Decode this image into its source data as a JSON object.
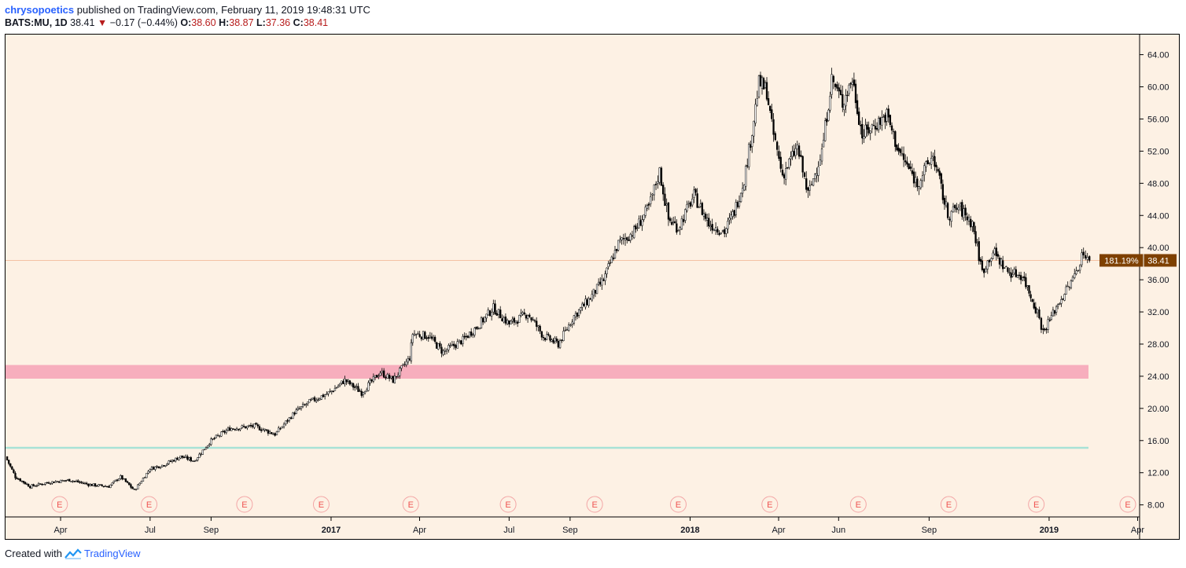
{
  "header": {
    "author": "chrysopoetics",
    "published_text": " published on TradingView.com, February 11, 2019 19:48:31 UTC",
    "symbol": "BATS:MU, 1D",
    "last": "38.41",
    "change_arrow": "▼",
    "change": "−0.17 (−0.44%)",
    "open_label": "O:",
    "open": "38.60",
    "high_label": "H:",
    "high": "38.87",
    "low_label": "L:",
    "low": "37.36",
    "close_label": "C:",
    "close": "38.41"
  },
  "footer": {
    "created_with": "Created with",
    "brand": "TradingView"
  },
  "chart_data": {
    "type": "line",
    "title": "",
    "symbol": "MU",
    "exchange": "BATS",
    "interval": "1D",
    "style": "candlestick",
    "ylim": [
      6.5,
      66.5
    ],
    "y_ticks": [
      "8.00",
      "12.00",
      "16.00",
      "20.00",
      "24.00",
      "28.00",
      "32.00",
      "36.00",
      "40.00",
      "44.00",
      "48.00",
      "52.00",
      "56.00",
      "60.00",
      "64.00"
    ],
    "x_ticks": [
      {
        "label": "Apr",
        "date": "2016-04-01",
        "bold": false
      },
      {
        "label": "Jul",
        "date": "2016-07-01",
        "bold": false
      },
      {
        "label": "Sep",
        "date": "2016-09-01",
        "bold": false
      },
      {
        "label": "2017",
        "date": "2017-01-01",
        "bold": true
      },
      {
        "label": "Apr",
        "date": "2017-04-01",
        "bold": false
      },
      {
        "label": "Jul",
        "date": "2017-07-01",
        "bold": false
      },
      {
        "label": "Sep",
        "date": "2017-09-01",
        "bold": false
      },
      {
        "label": "2018",
        "date": "2018-01-01",
        "bold": true
      },
      {
        "label": "Apr",
        "date": "2018-04-01",
        "bold": false
      },
      {
        "label": "Jun",
        "date": "2018-06-01",
        "bold": false
      },
      {
        "label": "Sep",
        "date": "2018-09-01",
        "bold": false
      },
      {
        "label": "2019",
        "date": "2019-01-01",
        "bold": true
      },
      {
        "label": "Apr",
        "date": "2019-04-01",
        "bold": false
      }
    ],
    "x_range": [
      "2016-02-05",
      "2019-04-03"
    ],
    "series": [
      {
        "values": [
          {
            "date": "2016-02-05",
            "close": 14.0
          },
          {
            "date": "2016-02-15",
            "close": 11.5
          },
          {
            "date": "2016-03-01",
            "close": 10.3
          },
          {
            "date": "2016-03-20",
            "close": 10.8
          },
          {
            "date": "2016-04-10",
            "close": 11.1
          },
          {
            "date": "2016-05-01",
            "close": 10.5
          },
          {
            "date": "2016-05-20",
            "close": 10.3
          },
          {
            "date": "2016-06-01",
            "close": 11.5
          },
          {
            "date": "2016-06-15",
            "close": 9.8
          },
          {
            "date": "2016-07-01",
            "close": 12.5
          },
          {
            "date": "2016-07-15",
            "close": 13.0
          },
          {
            "date": "2016-08-01",
            "close": 14.0
          },
          {
            "date": "2016-08-15",
            "close": 13.5
          },
          {
            "date": "2016-09-01",
            "close": 16.0
          },
          {
            "date": "2016-09-20",
            "close": 17.5
          },
          {
            "date": "2016-10-15",
            "close": 17.8
          },
          {
            "date": "2016-11-05",
            "close": 16.8
          },
          {
            "date": "2016-11-25",
            "close": 19.5
          },
          {
            "date": "2016-12-10",
            "close": 20.8
          },
          {
            "date": "2016-12-31",
            "close": 22.0
          },
          {
            "date": "2017-01-15",
            "close": 23.5
          },
          {
            "date": "2017-02-01",
            "close": 22.0
          },
          {
            "date": "2017-02-20",
            "close": 24.5
          },
          {
            "date": "2017-03-05",
            "close": 23.5
          },
          {
            "date": "2017-03-22",
            "close": 26.3
          },
          {
            "date": "2017-03-25",
            "close": 29.3
          },
          {
            "date": "2017-04-10",
            "close": 29.0
          },
          {
            "date": "2017-04-25",
            "close": 27.0
          },
          {
            "date": "2017-05-15",
            "close": 28.5
          },
          {
            "date": "2017-06-01",
            "close": 30.5
          },
          {
            "date": "2017-06-15",
            "close": 32.5
          },
          {
            "date": "2017-07-01",
            "close": 30.5
          },
          {
            "date": "2017-07-20",
            "close": 31.8
          },
          {
            "date": "2017-08-05",
            "close": 29.0
          },
          {
            "date": "2017-08-20",
            "close": 28.0
          },
          {
            "date": "2017-09-05",
            "close": 31.5
          },
          {
            "date": "2017-09-20",
            "close": 33.5
          },
          {
            "date": "2017-10-05",
            "close": 36.0
          },
          {
            "date": "2017-10-20",
            "close": 40.5
          },
          {
            "date": "2017-11-05",
            "close": 42.0
          },
          {
            "date": "2017-11-20",
            "close": 45.0
          },
          {
            "date": "2017-12-01",
            "close": 49.5
          },
          {
            "date": "2017-12-10",
            "close": 43.5
          },
          {
            "date": "2017-12-20",
            "close": 42.5
          },
          {
            "date": "2018-01-05",
            "close": 46.5
          },
          {
            "date": "2018-01-20",
            "close": 43.0
          },
          {
            "date": "2018-02-05",
            "close": 42.0
          },
          {
            "date": "2018-02-15",
            "close": 44.5
          },
          {
            "date": "2018-02-25",
            "close": 48.5
          },
          {
            "date": "2018-03-05",
            "close": 54.5
          },
          {
            "date": "2018-03-12",
            "close": 60.5
          },
          {
            "date": "2018-03-20",
            "close": 59.5
          },
          {
            "date": "2018-03-25",
            "close": 55.0
          },
          {
            "date": "2018-04-05",
            "close": 49.0
          },
          {
            "date": "2018-04-20",
            "close": 52.5
          },
          {
            "date": "2018-05-01",
            "close": 46.5
          },
          {
            "date": "2018-05-15",
            "close": 52.0
          },
          {
            "date": "2018-05-25",
            "close": 61.0
          },
          {
            "date": "2018-06-05",
            "close": 58.0
          },
          {
            "date": "2018-06-15",
            "close": 61.0
          },
          {
            "date": "2018-06-25",
            "close": 54.0
          },
          {
            "date": "2018-07-10",
            "close": 55.5
          },
          {
            "date": "2018-07-20",
            "close": 56.5
          },
          {
            "date": "2018-08-01",
            "close": 52.0
          },
          {
            "date": "2018-08-20",
            "close": 48.0
          },
          {
            "date": "2018-09-05",
            "close": 51.5
          },
          {
            "date": "2018-09-20",
            "close": 44.0
          },
          {
            "date": "2018-10-01",
            "close": 45.0
          },
          {
            "date": "2018-10-15",
            "close": 43.0
          },
          {
            "date": "2018-10-25",
            "close": 37.0
          },
          {
            "date": "2018-11-05",
            "close": 39.5
          },
          {
            "date": "2018-11-20",
            "close": 37.0
          },
          {
            "date": "2018-12-05",
            "close": 36.5
          },
          {
            "date": "2018-12-20",
            "close": 32.0
          },
          {
            "date": "2018-12-26",
            "close": 29.5
          },
          {
            "date": "2019-01-10",
            "close": 33.0
          },
          {
            "date": "2019-01-25",
            "close": 36.0
          },
          {
            "date": "2019-02-05",
            "close": 39.5
          },
          {
            "date": "2019-02-11",
            "close": 38.41
          }
        ]
      }
    ],
    "horizontal_zones": [
      {
        "type": "band",
        "from": 23.7,
        "to": 25.4,
        "color": "#f7aebd"
      },
      {
        "type": "line",
        "value": 15.1,
        "color": "#a7e2d6"
      },
      {
        "type": "line",
        "value": 38.41,
        "color": "#f4c2a4"
      }
    ],
    "earnings_marks": [
      {
        "date": "2016-03-31",
        "label": "E"
      },
      {
        "date": "2016-06-30",
        "label": "E"
      },
      {
        "date": "2016-10-05",
        "label": "E"
      },
      {
        "date": "2016-12-22",
        "label": "E"
      },
      {
        "date": "2017-03-23",
        "label": "E"
      },
      {
        "date": "2017-06-30",
        "label": "E"
      },
      {
        "date": "2017-09-26",
        "label": "E"
      },
      {
        "date": "2017-12-20",
        "label": "E"
      },
      {
        "date": "2018-03-23",
        "label": "E"
      },
      {
        "date": "2018-06-21",
        "label": "E"
      },
      {
        "date": "2018-09-21",
        "label": "E"
      },
      {
        "date": "2018-12-19",
        "label": "E"
      },
      {
        "date": "2019-03-22",
        "label": "E"
      }
    ],
    "price_label": {
      "percent": "181.19%",
      "value": "38.41",
      "color": "#7e4000"
    },
    "colors": {
      "background": "#fdf1e4",
      "candle": "#000000",
      "candle_up_fill": "#ffffff",
      "candle_down_fill": "#000000",
      "earnings": "#ef5350"
    }
  }
}
